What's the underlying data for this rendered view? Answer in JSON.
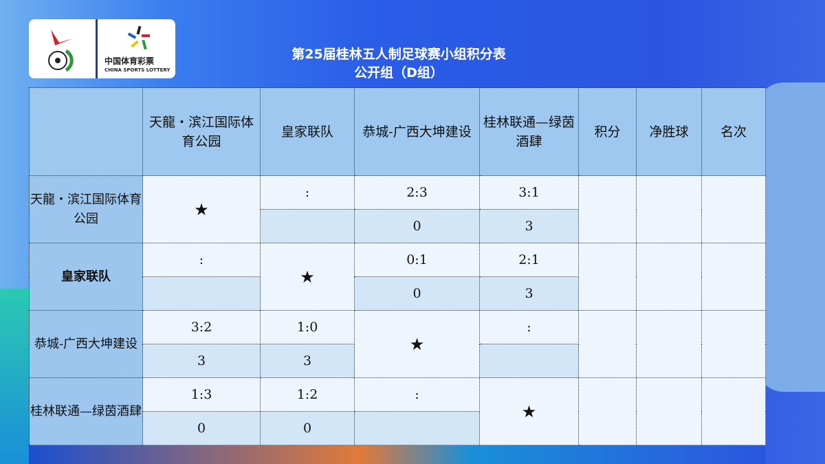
{
  "title": {
    "line1": "第25届桂林五人制足球赛小组积分表",
    "line2": "公开组（D组）"
  },
  "logo": {
    "text_cn": "中国体育彩票",
    "text_en": "CHINA SPORTS LOTTERY"
  },
  "colors": {
    "header_bg": "#9ec8ef",
    "score_row_bg": "#eef5fc",
    "points_row_bg": "#d3e6f7",
    "background": "#2b55e0"
  },
  "table": {
    "headers": [
      "",
      "天龍・滨江国际体育公园",
      "皇家联队",
      "恭城-广西大坤建设",
      "桂林联通—绿茵酒肆",
      "积分",
      "净胜球",
      "名次"
    ],
    "self_mark": "★",
    "rows": [
      {
        "team": "天龍・滨江国际体育公园",
        "bold": false,
        "results": [
          null,
          {
            "score": ":",
            "points": ""
          },
          {
            "score": "2:3",
            "points": "0"
          },
          {
            "score": "3:1",
            "points": "3"
          }
        ],
        "total": "",
        "goal_diff": "",
        "rank": ""
      },
      {
        "team": "皇家联队",
        "bold": true,
        "results": [
          {
            "score": ":",
            "points": ""
          },
          null,
          {
            "score": "0:1",
            "points": "0"
          },
          {
            "score": "2:1",
            "points": "3"
          }
        ],
        "total": "",
        "goal_diff": "",
        "rank": ""
      },
      {
        "team": "恭城-广西大坤建设",
        "bold": false,
        "results": [
          {
            "score": "3:2",
            "points": "3"
          },
          {
            "score": "1:0",
            "points": "3"
          },
          null,
          {
            "score": ":",
            "points": ""
          }
        ],
        "total": "",
        "goal_diff": "",
        "rank": ""
      },
      {
        "team": "桂林联通—绿茵酒肆",
        "bold": false,
        "results": [
          {
            "score": "1:3",
            "points": "0"
          },
          {
            "score": "1:2",
            "points": "0"
          },
          {
            "score": ":",
            "points": ""
          },
          null
        ],
        "total": "",
        "goal_diff": "",
        "rank": ""
      }
    ]
  }
}
